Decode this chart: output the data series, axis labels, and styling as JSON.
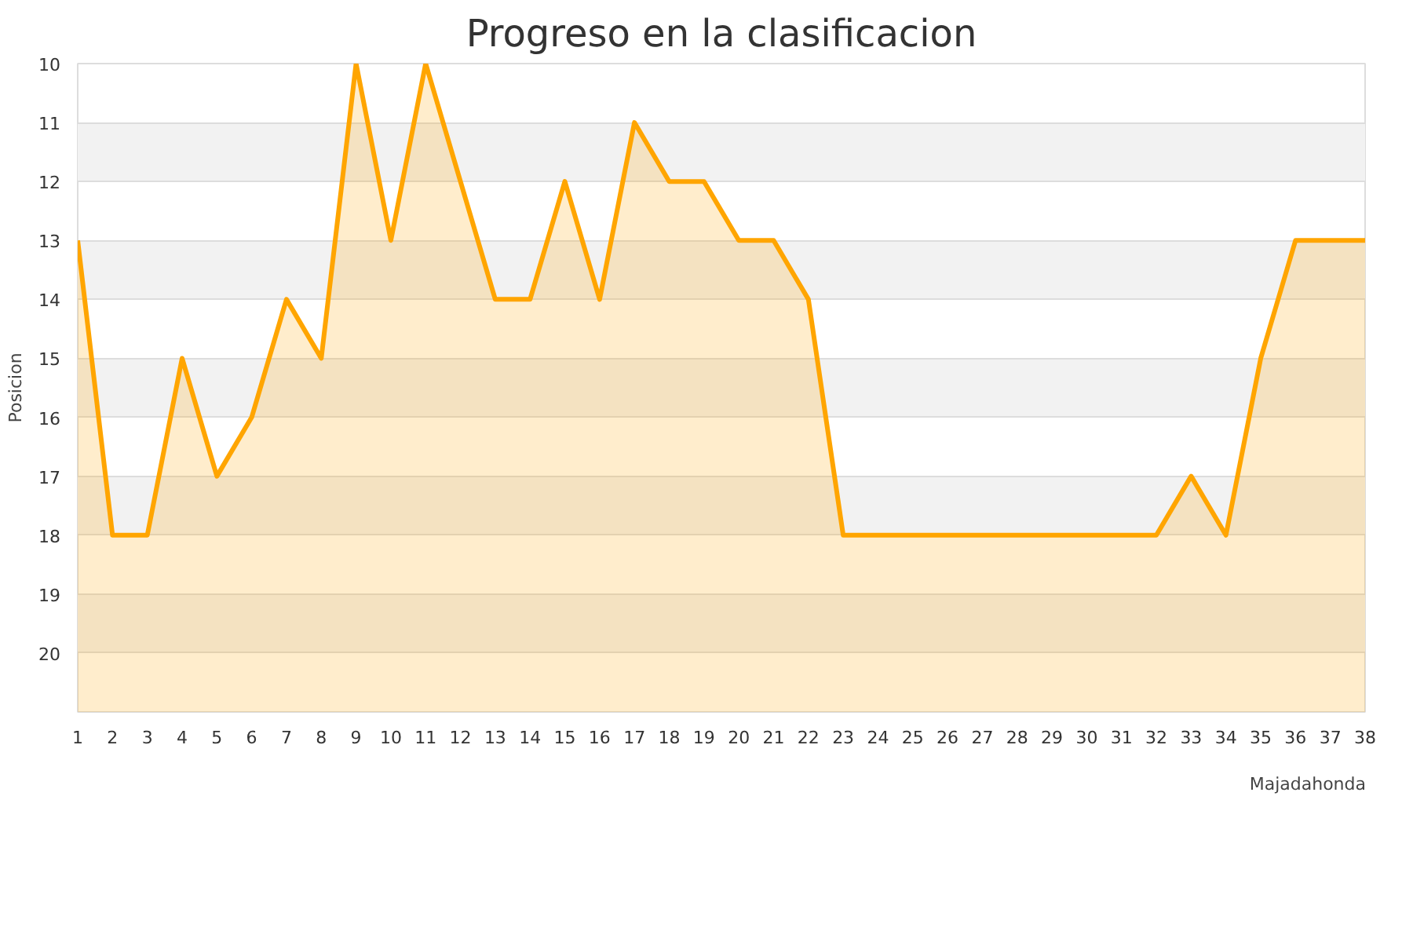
{
  "chart_data": {
    "type": "area",
    "title": "Progreso en la clasificacion",
    "ylabel": "Posicion",
    "x": [
      1,
      2,
      3,
      4,
      5,
      6,
      7,
      8,
      9,
      10,
      11,
      12,
      13,
      14,
      15,
      16,
      17,
      18,
      19,
      20,
      21,
      22,
      23,
      24,
      25,
      26,
      27,
      28,
      29,
      30,
      31,
      32,
      33,
      34,
      35,
      36,
      37,
      38
    ],
    "series": [
      {
        "name": "Majadahonda",
        "color": "#ffa500",
        "values": [
          13,
          18,
          18,
          15,
          17,
          16,
          14,
          15,
          10,
          13,
          10,
          12,
          14,
          14,
          12,
          14,
          11,
          12,
          12,
          13,
          13,
          14,
          18,
          18,
          18,
          18,
          18,
          18,
          18,
          18,
          18,
          18,
          17,
          18,
          15,
          13,
          13,
          13
        ]
      }
    ],
    "xlim": [
      1,
      38
    ],
    "xticks": [
      1,
      2,
      3,
      4,
      5,
      6,
      7,
      8,
      9,
      10,
      11,
      12,
      13,
      14,
      15,
      16,
      17,
      18,
      19,
      20,
      21,
      22,
      23,
      24,
      25,
      26,
      27,
      28,
      29,
      30,
      31,
      32,
      33,
      34,
      35,
      36,
      37,
      38
    ],
    "ylim": [
      21,
      10
    ],
    "yticks": [
      10,
      11,
      12,
      13,
      14,
      15,
      16,
      17,
      18,
      19,
      20
    ],
    "bands": [
      {
        "axis": "y",
        "from": 11,
        "to": 12,
        "color": "#f2f2f2"
      },
      {
        "axis": "y",
        "from": 13,
        "to": 14,
        "color": "#f2f2f2"
      },
      {
        "axis": "y",
        "from": 15,
        "to": 16,
        "color": "#f2f2f2"
      },
      {
        "axis": "y",
        "from": 17,
        "to": 18,
        "color": "#f2f2f2"
      },
      {
        "axis": "y",
        "from": 19,
        "to": 20,
        "color": "#f2f2f2"
      }
    ],
    "grid": "y",
    "legend": "bottom right"
  }
}
